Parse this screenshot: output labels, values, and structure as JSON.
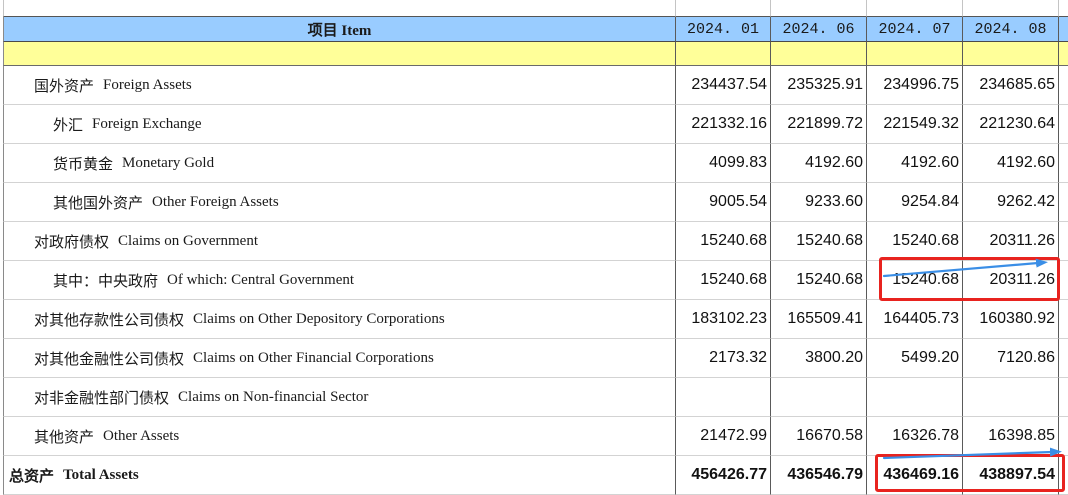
{
  "chart_data": {
    "type": "table",
    "item_header": "项目 Item",
    "columns": [
      "2024. 01",
      "2024. 06",
      "2024. 07",
      "2024. 08"
    ],
    "rows": [
      {
        "label_cn": "国外资产",
        "label_en": "Foreign Assets",
        "values": [
          234437.54,
          235325.91,
          234996.75,
          234685.65
        ]
      },
      {
        "label_cn": "外汇",
        "label_en": "Foreign Exchange",
        "values": [
          221332.16,
          221899.72,
          221549.32,
          221230.64
        ]
      },
      {
        "label_cn": "货币黄金",
        "label_en": "Monetary Gold",
        "values": [
          4099.83,
          4192.6,
          4192.6,
          4192.6
        ]
      },
      {
        "label_cn": "其他国外资产",
        "label_en": "Other Foreign Assets",
        "values": [
          9005.54,
          9233.6,
          9254.84,
          9262.42
        ]
      },
      {
        "label_cn": "对政府债权",
        "label_en": "Claims on Government",
        "values": [
          15240.68,
          15240.68,
          15240.68,
          20311.26
        ]
      },
      {
        "label_cn": "其中：中央政府",
        "label_en": "Of which: Central Government",
        "values": [
          15240.68,
          15240.68,
          15240.68,
          20311.26
        ]
      },
      {
        "label_cn": "对其他存款性公司债权",
        "label_en": "Claims on Other Depository Corporations",
        "values": [
          183102.23,
          165509.41,
          164405.73,
          160380.92
        ]
      },
      {
        "label_cn": "对其他金融性公司债权",
        "label_en": "Claims on Other Financial Corporations",
        "values": [
          2173.32,
          3800.2,
          5499.2,
          7120.86
        ]
      },
      {
        "label_cn": "对非金融性部门债权",
        "label_en": "Claims on Non-financial Sector",
        "values": []
      },
      {
        "label_cn": "其他资产",
        "label_en": "Other Assets",
        "values": [
          21472.99,
          16670.58,
          16326.78,
          16398.85
        ]
      },
      {
        "label_cn": "总资产",
        "label_en": "Total Assets",
        "values": [
          456426.77,
          436546.79,
          436469.16,
          438897.54
        ]
      }
    ]
  },
  "colors": {
    "header_bg": "#99ccff",
    "subheader_bg": "#ffff99",
    "highlight": "#e8231f",
    "arrow": "#3a8ee6"
  }
}
